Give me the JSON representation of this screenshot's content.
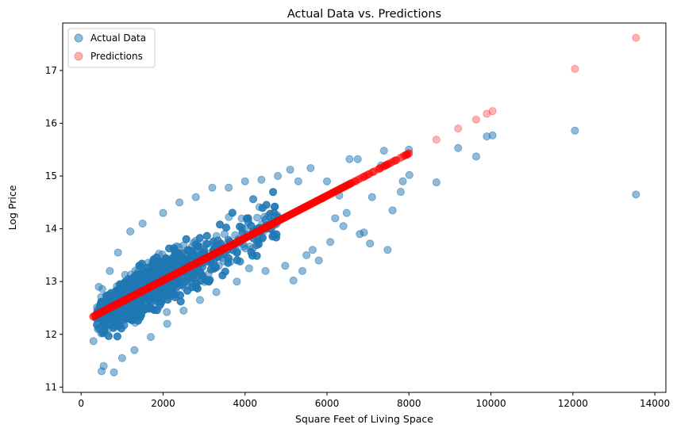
{
  "chart_data": {
    "type": "scatter",
    "title": "Actual Data vs. Predictions",
    "xlabel": "Square Feet of Living Space",
    "ylabel": "Log Price",
    "xlim": [
      -450,
      14270
    ],
    "ylim": [
      10.9,
      17.9
    ],
    "xticks": [
      0,
      2000,
      4000,
      6000,
      8000,
      10000,
      12000,
      14000
    ],
    "yticks": [
      11,
      12,
      13,
      14,
      15,
      16,
      17
    ],
    "grid": false,
    "legend_position": "top-left",
    "series": [
      {
        "name": "Actual Data",
        "color": "#1f77b4",
        "alpha": 0.5,
        "points": [
          [
            13540,
            14.65
          ],
          [
            12050,
            15.86
          ],
          [
            10040,
            15.77
          ],
          [
            9900,
            15.75
          ],
          [
            9640,
            15.37
          ],
          [
            9200,
            15.53
          ],
          [
            8670,
            14.88
          ],
          [
            8010,
            15.02
          ],
          [
            8000,
            15.5
          ],
          [
            7850,
            14.9
          ],
          [
            7800,
            14.7
          ],
          [
            7600,
            14.35
          ],
          [
            7480,
            13.6
          ],
          [
            7390,
            15.48
          ],
          [
            7320,
            15.2
          ],
          [
            7100,
            14.6
          ],
          [
            7050,
            13.72
          ],
          [
            6900,
            13.93
          ],
          [
            6800,
            13.9
          ],
          [
            6750,
            15.32
          ],
          [
            6550,
            15.32
          ],
          [
            6480,
            14.3
          ],
          [
            6400,
            14.05
          ],
          [
            6300,
            14.63
          ],
          [
            6200,
            14.2
          ],
          [
            6080,
            13.75
          ],
          [
            6000,
            14.9
          ],
          [
            5900,
            14.58
          ],
          [
            5800,
            13.4
          ],
          [
            5650,
            13.6
          ],
          [
            5600,
            15.15
          ],
          [
            5500,
            13.5
          ],
          [
            5400,
            13.2
          ],
          [
            5300,
            14.9
          ],
          [
            5180,
            13.02
          ],
          [
            5100,
            15.12
          ],
          [
            4980,
            13.3
          ],
          [
            4800,
            15.0
          ],
          [
            4500,
            13.2
          ],
          [
            4400,
            14.93
          ],
          [
            4100,
            13.25
          ],
          [
            4000,
            14.9
          ],
          [
            3800,
            13.0
          ],
          [
            3600,
            14.78
          ],
          [
            3300,
            12.8
          ],
          [
            3200,
            14.78
          ],
          [
            2900,
            12.65
          ],
          [
            2800,
            14.6
          ],
          [
            2500,
            12.45
          ],
          [
            2400,
            14.5
          ],
          [
            2100,
            12.2
          ],
          [
            2000,
            14.3
          ],
          [
            1700,
            11.95
          ],
          [
            1500,
            14.1
          ],
          [
            1300,
            11.7
          ],
          [
            1200,
            13.95
          ],
          [
            1000,
            11.55
          ],
          [
            900,
            13.55
          ],
          [
            800,
            11.28
          ],
          [
            700,
            13.2
          ],
          [
            550,
            11.4
          ],
          [
            500,
            11.3
          ],
          [
            430,
            12.9
          ],
          [
            380,
            12.3
          ],
          [
            300,
            11.87
          ],
          [
            2200,
            13.4
          ],
          [
            3000,
            13.6
          ],
          [
            3500,
            13.9
          ],
          [
            1800,
            12.8
          ],
          [
            2600,
            13.1
          ]
        ]
      },
      {
        "name": "Predictions",
        "color": "#ff0000",
        "alpha": 0.3,
        "points": [
          [
            290,
            12.33
          ],
          [
            370,
            12.37
          ],
          [
            8000,
            15.43
          ],
          [
            7950,
            15.4
          ],
          [
            7700,
            15.3
          ],
          [
            7500,
            15.23
          ],
          [
            7300,
            15.15
          ],
          [
            7100,
            15.07
          ],
          [
            6900,
            14.98
          ],
          [
            6700,
            14.9
          ],
          [
            8670,
            15.69
          ],
          [
            9200,
            15.9
          ],
          [
            9640,
            16.07
          ],
          [
            9900,
            16.18
          ],
          [
            10040,
            16.23
          ],
          [
            12050,
            17.03
          ],
          [
            13540,
            17.62
          ]
        ]
      }
    ],
    "prediction_line": {
      "intercept": 12.22,
      "slope": 0.0004011
    }
  }
}
